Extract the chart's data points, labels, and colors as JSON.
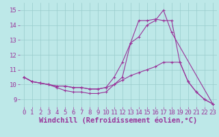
{
  "xlabel": "Windchill (Refroidissement éolien,°C)",
  "xlim": [
    -0.5,
    23.5
  ],
  "ylim": [
    8.5,
    15.5
  ],
  "xticks": [
    0,
    1,
    2,
    3,
    4,
    5,
    6,
    7,
    8,
    9,
    10,
    11,
    12,
    13,
    14,
    15,
    16,
    17,
    18,
    19,
    20,
    21,
    22,
    23
  ],
  "yticks": [
    9,
    10,
    11,
    12,
    13,
    14,
    15
  ],
  "background_color": "#bde8e8",
  "grid_color": "#99cccc",
  "line_color": "#993399",
  "line1_x": [
    0,
    1,
    2,
    3,
    4,
    5,
    6,
    7,
    8,
    9,
    10,
    11,
    12,
    13,
    14,
    15,
    16,
    17,
    18,
    23
  ],
  "line1_y": [
    10.5,
    10.2,
    10.1,
    10.0,
    9.9,
    9.9,
    9.8,
    9.8,
    9.7,
    9.7,
    9.8,
    10.5,
    11.5,
    12.8,
    13.2,
    14.0,
    14.3,
    15.0,
    13.5,
    8.7
  ],
  "line2_x": [
    0,
    1,
    2,
    3,
    4,
    5,
    6,
    7,
    8,
    9,
    10,
    11,
    12,
    13,
    14,
    15,
    16,
    17,
    18,
    19,
    20,
    21,
    22,
    23
  ],
  "line2_y": [
    10.5,
    10.2,
    10.1,
    10.0,
    9.9,
    9.9,
    9.8,
    9.8,
    9.7,
    9.7,
    9.8,
    10.0,
    10.3,
    10.6,
    10.8,
    11.0,
    11.2,
    11.5,
    11.5,
    11.5,
    10.2,
    9.5,
    9.0,
    8.7
  ],
  "line3_x": [
    0,
    1,
    2,
    3,
    4,
    5,
    6,
    7,
    8,
    9,
    10,
    11,
    12,
    13,
    14,
    15,
    16,
    17,
    18,
    19,
    20,
    21,
    22,
    23
  ],
  "line3_y": [
    10.5,
    10.2,
    10.1,
    10.0,
    9.8,
    9.6,
    9.5,
    9.5,
    9.4,
    9.4,
    9.5,
    10.0,
    10.5,
    12.8,
    14.3,
    14.3,
    14.4,
    14.3,
    14.3,
    11.5,
    10.2,
    9.5,
    9.0,
    8.7
  ],
  "tick_fontsize": 6.5,
  "xlabel_fontsize": 7.5
}
